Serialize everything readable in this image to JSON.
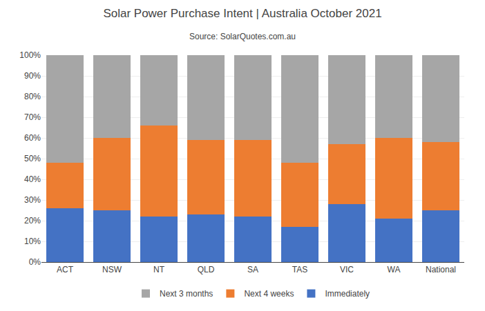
{
  "chart_data": {
    "type": "bar",
    "title": "Solar Power Purchase Intent | Australia October 2021",
    "subtitle": "Source: SolarQuotes.com.au",
    "categories": [
      "ACT",
      "NSW",
      "NT",
      "QLD",
      "SA",
      "TAS",
      "VIC",
      "WA",
      "National"
    ],
    "series": [
      {
        "name": "Immediately",
        "color": "#4472c4",
        "values": [
          26,
          25,
          22,
          23,
          22,
          17,
          28,
          21,
          25
        ]
      },
      {
        "name": "Next 4 weeks",
        "color": "#ed7d31",
        "values": [
          22,
          35,
          44,
          36,
          37,
          31,
          29,
          39,
          33
        ]
      },
      {
        "name": "Next 3 months",
        "color": "#a6a6a6",
        "values": [
          52,
          40,
          34,
          41,
          41,
          52,
          43,
          40,
          42
        ]
      }
    ],
    "stacked": true,
    "ylim": [
      0,
      100
    ],
    "yticks": [
      {
        "value": 0,
        "label": "0%"
      },
      {
        "value": 10,
        "label": "10%"
      },
      {
        "value": 20,
        "label": "20%"
      },
      {
        "value": 30,
        "label": "30%"
      },
      {
        "value": 40,
        "label": "40%"
      },
      {
        "value": 50,
        "label": "50%"
      },
      {
        "value": 60,
        "label": "60%"
      },
      {
        "value": 70,
        "label": "70%"
      },
      {
        "value": 80,
        "label": "80%"
      },
      {
        "value": 90,
        "label": "90%"
      },
      {
        "value": 100,
        "label": "100%"
      }
    ],
    "grid": true,
    "legend": "bottom"
  }
}
